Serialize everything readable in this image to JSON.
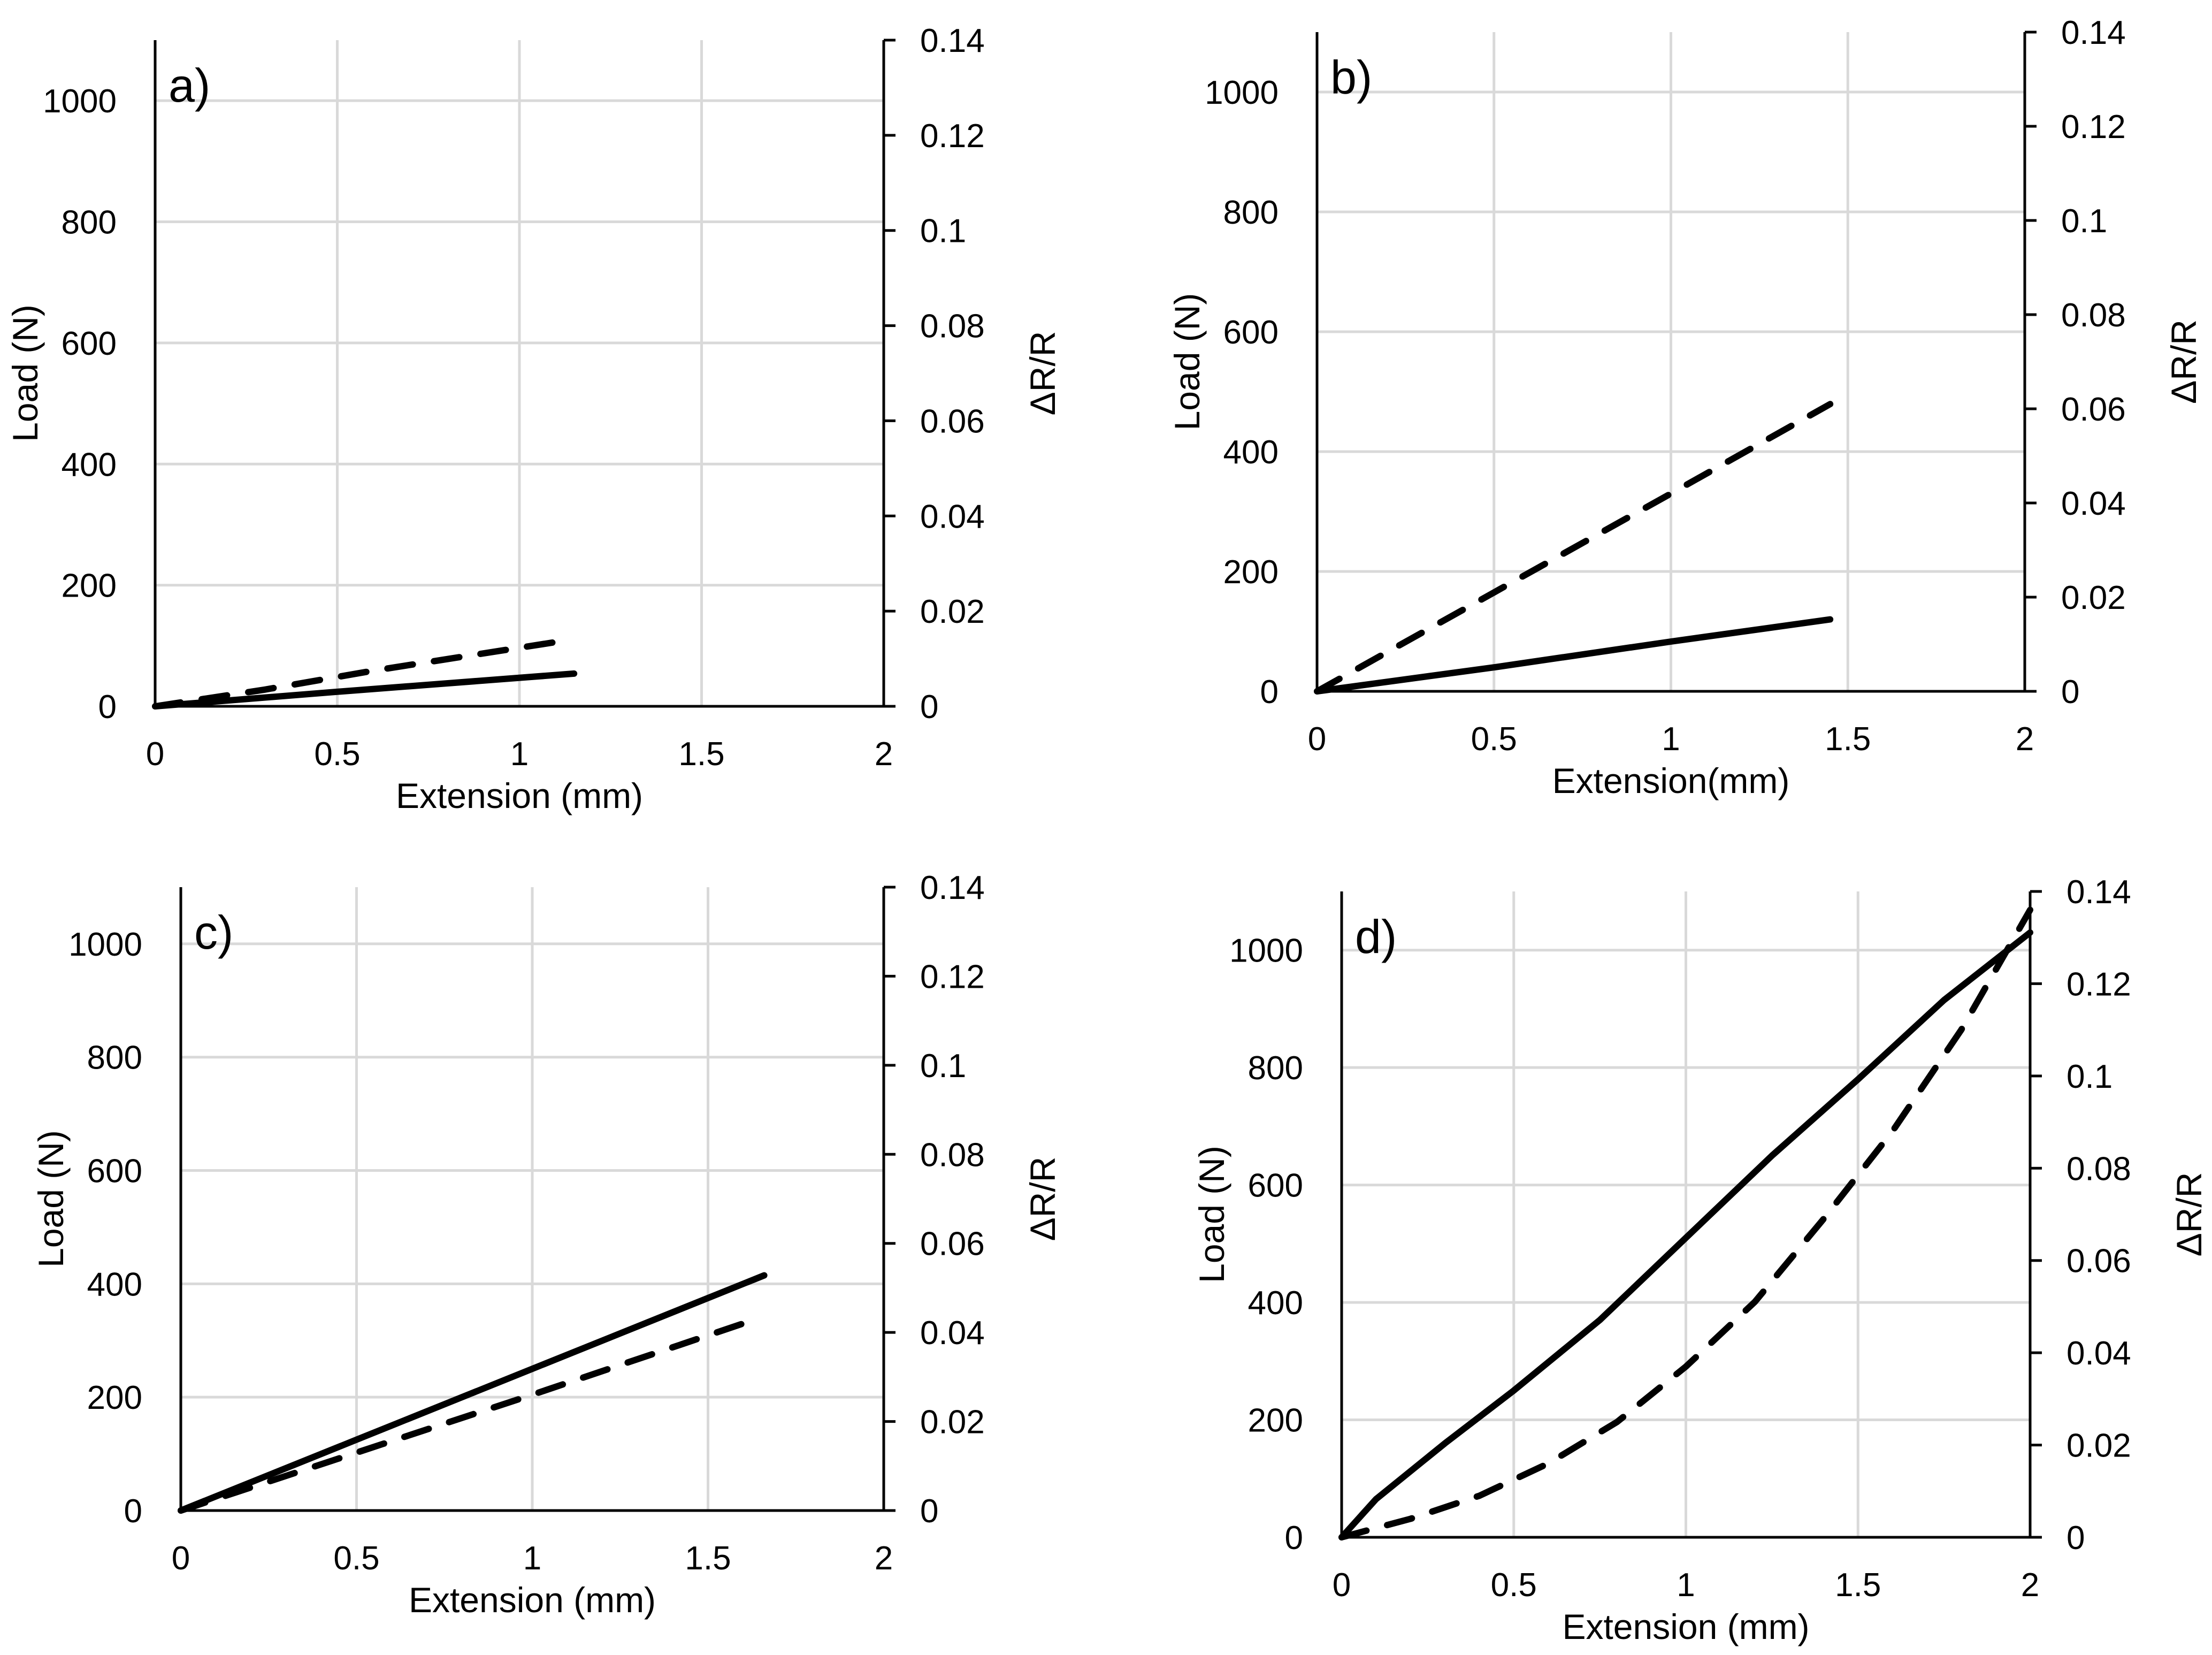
{
  "chart_data": [
    {
      "type": "line",
      "panel_label": "a)",
      "xlabel": "Extension (mm)",
      "ylabel": "Load (N)",
      "y2label": "ΔR/R",
      "xlim": [
        0,
        2
      ],
      "ylim": [
        0,
        1100
      ],
      "y2lim": [
        0,
        0.14
      ],
      "xticks": [
        "0",
        "0.5",
        "1",
        "1.5",
        "2"
      ],
      "yticks": [
        "0",
        "200",
        "400",
        "600",
        "800",
        "1000"
      ],
      "y2ticks": [
        "0",
        "0.02",
        "0.04",
        "0.06",
        "0.08",
        "0.1",
        "0.12",
        "0.14"
      ],
      "grid": true,
      "series": [
        {
          "name": "Load",
          "axis": "left",
          "style": "solid",
          "x": [
            0,
            0.5,
            1.15
          ],
          "y": [
            0,
            24,
            54
          ]
        },
        {
          "name": "ΔR/R",
          "axis": "right",
          "style": "dashed",
          "x": [
            0,
            0.3,
            0.6,
            1.1
          ],
          "y": [
            0,
            0.0035,
            0.0075,
            0.0135
          ]
        }
      ]
    },
    {
      "type": "line",
      "panel_label": "b)",
      "xlabel": "Extension(mm)",
      "ylabel": "Load (N)",
      "y2label": "ΔR/R",
      "xlim": [
        0,
        2
      ],
      "ylim": [
        0,
        1100
      ],
      "y2lim": [
        0,
        0.14
      ],
      "xticks": [
        "0",
        "0.5",
        "1",
        "1.5",
        "2"
      ],
      "yticks": [
        "0",
        "200",
        "400",
        "600",
        "800",
        "1000"
      ],
      "y2ticks": [
        "0",
        "0.02",
        "0.04",
        "0.06",
        "0.08",
        "0.1",
        "0.12",
        "0.14"
      ],
      "grid": true,
      "series": [
        {
          "name": "Load",
          "axis": "left",
          "style": "solid",
          "x": [
            0,
            0.5,
            1.0,
            1.45
          ],
          "y": [
            0,
            40,
            83,
            120
          ]
        },
        {
          "name": "ΔR/R",
          "axis": "right",
          "style": "dashed",
          "x": [
            0,
            0.5,
            1.0,
            1.45
          ],
          "y": [
            0,
            0.021,
            0.042,
            0.061
          ]
        }
      ]
    },
    {
      "type": "line",
      "panel_label": "c)",
      "xlabel": "Extension (mm)",
      "ylabel": "Load (N)",
      "y2label": "ΔR/R",
      "xlim": [
        0,
        2
      ],
      "ylim": [
        0,
        1100
      ],
      "y2lim": [
        0,
        0.14
      ],
      "xticks": [
        "0",
        "0.5",
        "1",
        "1.5",
        "2"
      ],
      "yticks": [
        "0",
        "200",
        "400",
        "600",
        "800",
        "1000"
      ],
      "y2ticks": [
        "0",
        "0.02",
        "0.04",
        "0.06",
        "0.08",
        "0.1",
        "0.12",
        "0.14"
      ],
      "grid": true,
      "series": [
        {
          "name": "Load",
          "axis": "left",
          "style": "solid",
          "x": [
            0,
            0.5,
            1.0,
            1.66
          ],
          "y": [
            0,
            125,
            250,
            415
          ]
        },
        {
          "name": "ΔR/R",
          "axis": "right",
          "style": "dashed",
          "x": [
            0,
            0.5,
            1.0,
            1.6
          ],
          "y": [
            0,
            0.013,
            0.026,
            0.042
          ]
        }
      ]
    },
    {
      "type": "line",
      "panel_label": "d)",
      "xlabel": "Extension (mm)",
      "ylabel": "Load (N)",
      "y2label": "ΔR/R",
      "xlim": [
        0,
        2
      ],
      "ylim": [
        0,
        1100
      ],
      "y2lim": [
        0,
        0.14
      ],
      "xticks": [
        "0",
        "0.5",
        "1",
        "1.5",
        "2"
      ],
      "yticks": [
        "0",
        "200",
        "400",
        "600",
        "800",
        "1000"
      ],
      "y2ticks": [
        "0",
        "0.02",
        "0.04",
        "0.06",
        "0.08",
        "0.1",
        "0.12",
        "0.14"
      ],
      "grid": true,
      "series": [
        {
          "name": "Load",
          "axis": "left",
          "style": "solid",
          "x": [
            0,
            0.1,
            0.3,
            0.5,
            0.75,
            1.0,
            1.25,
            1.5,
            1.75,
            2.0
          ],
          "y": [
            0,
            65,
            160,
            250,
            370,
            510,
            650,
            780,
            915,
            1030
          ]
        },
        {
          "name": "ΔR/R",
          "axis": "right",
          "style": "dashed",
          "x": [
            0,
            0.2,
            0.4,
            0.6,
            0.8,
            1.0,
            1.2,
            1.4,
            1.6,
            1.8,
            2.0
          ],
          "y": [
            0,
            0.004,
            0.009,
            0.016,
            0.025,
            0.037,
            0.051,
            0.069,
            0.088,
            0.11,
            0.136
          ]
        }
      ]
    }
  ]
}
